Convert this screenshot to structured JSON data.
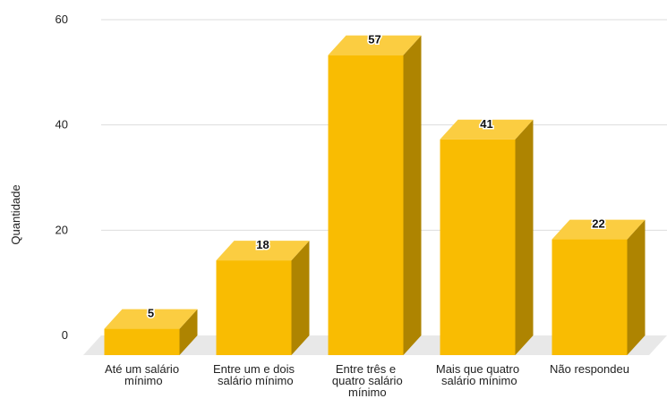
{
  "chart_data": {
    "type": "bar3d",
    "y_axis_label": "Quantidade",
    "categories": [
      "Até um salário mínimo",
      "Entre um e dois salário mínimo",
      "Entre três e quatro salário mínimo",
      "Mais que quatro salário mínimo",
      "Não respondeu"
    ],
    "values": [
      5,
      18,
      57,
      41,
      22
    ],
    "color": "#f9bc02",
    "ylim": [
      0,
      60
    ],
    "yticks": [
      0,
      20,
      40,
      60
    ],
    "grid": true
  }
}
